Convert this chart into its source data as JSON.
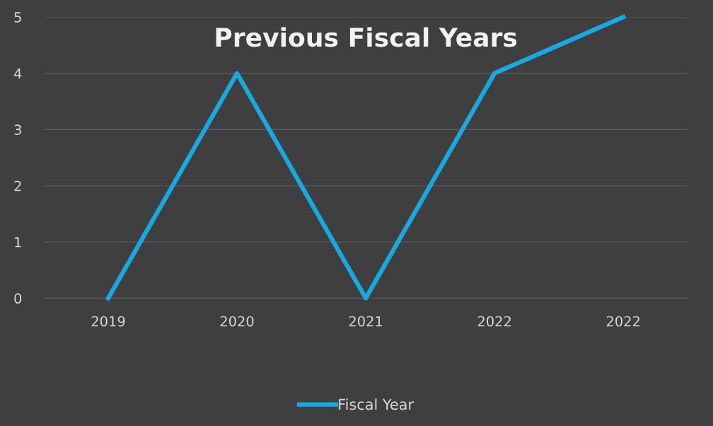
{
  "chart_data": {
    "type": "line",
    "title": "Previous Fiscal Years",
    "categories": [
      "2019",
      "2020",
      "2021",
      "2022",
      "2022"
    ],
    "series": [
      {
        "name": "Fiscal Year",
        "color": "#17a9e1",
        "values": [
          0,
          4,
          0,
          4,
          5
        ]
      }
    ],
    "ylim": [
      0,
      5
    ],
    "yticks": [
      0,
      1,
      2,
      3,
      4,
      5
    ],
    "grid": "y",
    "legend": "bottom",
    "marker": "none",
    "line_style": "solid"
  }
}
